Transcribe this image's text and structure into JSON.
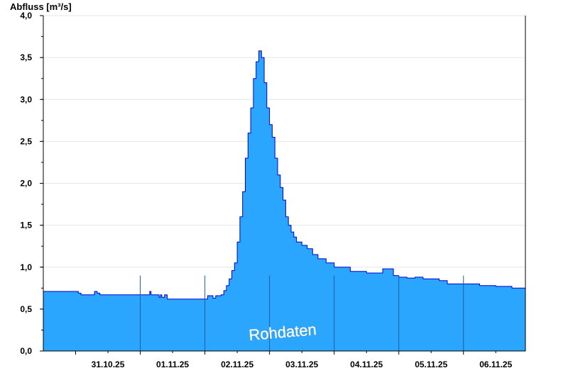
{
  "chart_data": {
    "type": "area",
    "ylabel": "Abfluss [m³/s]",
    "watermark": "Rohdaten",
    "ylim": [
      0,
      4.0
    ],
    "yticks": [
      "0,0",
      "0,5",
      "1,0",
      "1,5",
      "2,0",
      "2,5",
      "3,0",
      "3,5",
      "4,0"
    ],
    "xlim": [
      "2025-10-30T12:00",
      "2025-11-06T23:00"
    ],
    "xticks": [
      "31.10.25",
      "01.11.25",
      "02.11.25",
      "03.11.25",
      "04.11.25",
      "05.11.25",
      "06.11.25"
    ],
    "grid": true,
    "colors": {
      "fill": "#2aa6fe",
      "line": "#0000cc",
      "day_separator": "#1f5e9e",
      "grid": "#e6e6e6"
    },
    "series": [
      {
        "x": [
          "2025-10-30T12:00",
          "2025-10-31T00:00",
          "2025-10-31T01:00",
          "2025-10-31T02:00",
          "2025-10-31T06:00",
          "2025-10-31T07:00",
          "2025-10-31T08:00",
          "2025-10-31T09:00",
          "2025-10-31T18:00",
          "2025-11-01T00:00",
          "2025-11-01T03:00",
          "2025-11-01T03:30",
          "2025-11-01T04:00",
          "2025-11-01T06:00",
          "2025-11-01T07:00",
          "2025-11-01T07:30",
          "2025-11-01T08:00",
          "2025-11-01T09:00",
          "2025-11-01T10:00",
          "2025-11-01T11:00",
          "2025-11-01T12:00",
          "2025-11-01T18:00",
          "2025-11-02T00:00",
          "2025-11-02T01:00",
          "2025-11-02T02:00",
          "2025-11-02T03:00",
          "2025-11-02T04:00",
          "2025-11-02T06:00",
          "2025-11-02T07:00",
          "2025-11-02T08:00",
          "2025-11-02T09:00",
          "2025-11-02T10:00",
          "2025-11-02T11:00",
          "2025-11-02T12:00",
          "2025-11-02T13:00",
          "2025-11-02T14:00",
          "2025-11-02T15:00",
          "2025-11-02T16:00",
          "2025-11-02T17:00",
          "2025-11-02T18:00",
          "2025-11-02T19:00",
          "2025-11-02T20:00",
          "2025-11-02T21:00",
          "2025-11-02T22:00",
          "2025-11-02T23:00",
          "2025-11-03T00:00",
          "2025-11-03T01:00",
          "2025-11-03T02:00",
          "2025-11-03T03:00",
          "2025-11-03T04:00",
          "2025-11-03T05:00",
          "2025-11-03T06:00",
          "2025-11-03T07:00",
          "2025-11-03T08:00",
          "2025-11-03T09:00",
          "2025-11-03T10:00",
          "2025-11-03T12:00",
          "2025-11-03T14:00",
          "2025-11-03T16:00",
          "2025-11-03T18:00",
          "2025-11-03T21:00",
          "2025-11-04T00:00",
          "2025-11-04T06:00",
          "2025-11-04T12:00",
          "2025-11-04T18:00",
          "2025-11-04T22:00",
          "2025-11-05T00:00",
          "2025-11-05T03:00",
          "2025-11-05T06:00",
          "2025-11-05T09:00",
          "2025-11-05T12:00",
          "2025-11-05T15:00",
          "2025-11-05T18:00",
          "2025-11-06T00:00",
          "2025-11-06T06:00",
          "2025-11-06T12:00",
          "2025-11-06T18:00",
          "2025-11-06T23:00"
        ],
        "y": [
          0.71,
          0.71,
          0.69,
          0.67,
          0.67,
          0.71,
          0.69,
          0.67,
          0.67,
          0.67,
          0.67,
          0.71,
          0.67,
          0.67,
          0.64,
          0.67,
          0.64,
          0.67,
          0.62,
          0.62,
          0.62,
          0.62,
          0.62,
          0.66,
          0.66,
          0.63,
          0.66,
          0.67,
          0.72,
          0.78,
          0.86,
          0.96,
          1.05,
          1.3,
          1.6,
          1.9,
          2.3,
          2.6,
          2.9,
          3.25,
          3.45,
          3.58,
          3.5,
          3.2,
          2.9,
          2.7,
          2.55,
          2.3,
          2.1,
          1.95,
          1.8,
          1.6,
          1.5,
          1.42,
          1.36,
          1.3,
          1.26,
          1.22,
          1.15,
          1.1,
          1.05,
          1.0,
          0.95,
          0.93,
          0.98,
          0.9,
          0.88,
          0.87,
          0.88,
          0.86,
          0.86,
          0.84,
          0.8,
          0.8,
          0.78,
          0.77,
          0.75,
          0.75
        ]
      }
    ]
  }
}
